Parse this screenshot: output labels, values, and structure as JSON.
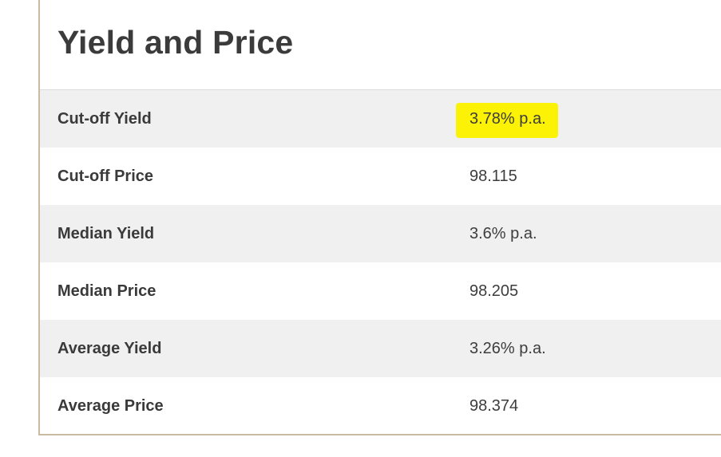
{
  "title": "Yield and Price",
  "rows": [
    {
      "label": "Cut-off Yield",
      "value": "3.78% p.a."
    },
    {
      "label": "Cut-off Price",
      "value": "98.115"
    },
    {
      "label": "Median Yield",
      "value": "3.6% p.a."
    },
    {
      "label": "Median Price",
      "value": "98.205"
    },
    {
      "label": "Average Yield",
      "value": "3.26% p.a."
    },
    {
      "label": "Average Price",
      "value": "98.374"
    }
  ],
  "colors": {
    "highlight": "#fbf206",
    "row_shade": "#f0f0f0",
    "card_border": "#c8bba2",
    "text": "#3a3a3a"
  }
}
